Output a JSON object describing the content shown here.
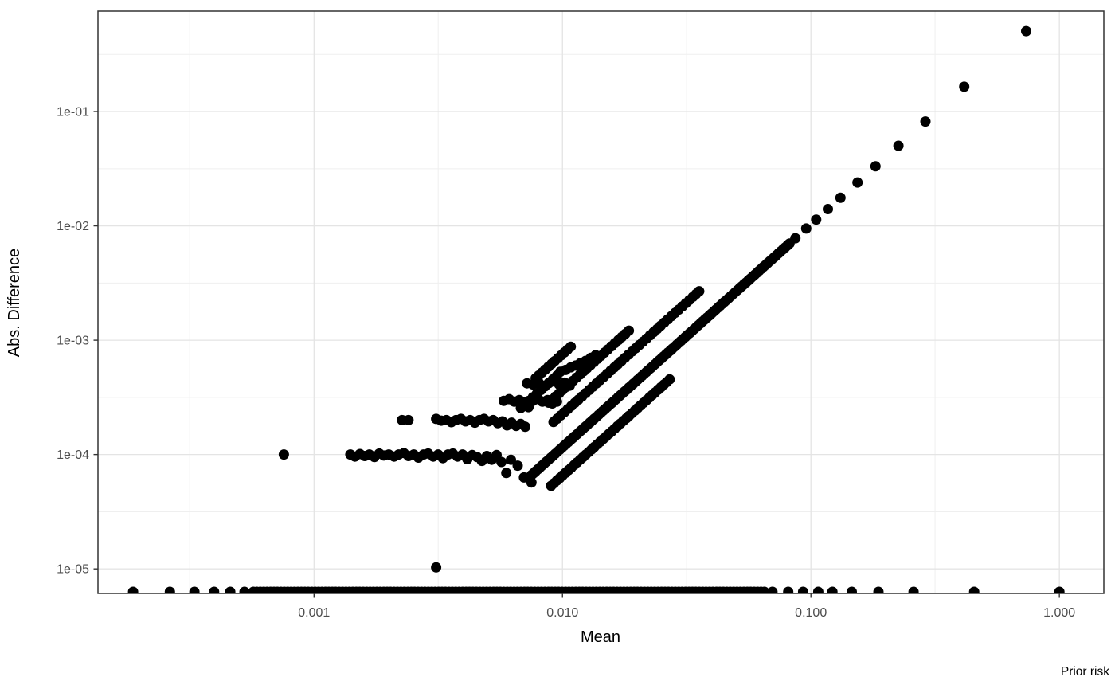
{
  "chart_data": {
    "type": "scatter",
    "title": "",
    "xlabel": "Mean",
    "ylabel": "Abs. Difference",
    "legend_title": "Prior risk",
    "axes": {
      "x": {
        "scale": "log",
        "range": [
          0.000135,
          1.51
        ],
        "ticks": [
          0.001,
          0.01,
          0.1,
          1
        ],
        "tick_labels": [
          "0.001",
          "0.010",
          "0.100",
          "1.000"
        ],
        "minor": [
          0.000316,
          0.00316,
          0.0316,
          0.316
        ]
      },
      "y": {
        "scale": "log",
        "range": [
          6.1e-06,
          0.755
        ],
        "ticks": [
          1e-05,
          0.0001,
          0.001,
          0.01,
          0.1
        ],
        "tick_labels": [
          "1e-05",
          "1e-04",
          "1e-03",
          "1e-02",
          "1e-01"
        ],
        "minor": [
          3.16e-05,
          0.000316,
          0.00316,
          0.0316,
          0.316
        ]
      }
    },
    "style": {
      "point_color": "#000000",
      "point_radius": 6.5,
      "grid_major_color": "#e4e4e4",
      "grid_minor_color": "#efefef",
      "panel_border_color": "#333333",
      "tick_mark_color": "#333333",
      "tick_label_color": "#4d4d4d",
      "grid": true,
      "legend_position": "bottom-right"
    },
    "series": [
      {
        "name": "bottom-row-clipped",
        "segments": [
          {
            "kind": "points",
            "pts": [
              [
                0.000187,
                6.3e-06
              ],
              [
                0.000263,
                6.3e-06
              ],
              [
                0.00033,
                6.3e-06
              ],
              [
                0.000396,
                6.3e-06
              ],
              [
                0.00046,
                6.3e-06
              ],
              [
                0.000525,
                6.3e-06
              ]
            ]
          },
          {
            "kind": "const_y",
            "y": 6.3e-06,
            "from": 0.00057,
            "to": 0.065,
            "n": 150
          },
          {
            "kind": "points",
            "pts": [
              [
                0.07,
                6.3e-06
              ],
              [
                0.081,
                6.3e-06
              ],
              [
                0.093,
                6.3e-06
              ],
              [
                0.107,
                6.3e-06
              ],
              [
                0.122,
                6.3e-06
              ],
              [
                0.146,
                6.3e-06
              ],
              [
                0.187,
                6.3e-06
              ],
              [
                0.259,
                6.3e-06
              ],
              [
                0.454,
                6.3e-06
              ],
              [
                1.0,
                6.3e-06
              ]
            ]
          }
        ]
      },
      {
        "name": "main-curve",
        "segments": [
          {
            "kind": "power",
            "c": 0.92,
            "exp": 1.95,
            "from": 0.0075,
            "to": 0.082,
            "n": 120
          },
          {
            "kind": "power_points",
            "c": 0.92,
            "exp": 1.95,
            "xs": [
              0.0866,
              0.0957,
              0.105,
              0.117,
              0.1315,
              0.154,
              0.182,
              0.225,
              0.289,
              0.414,
              0.735
            ]
          }
        ]
      },
      {
        "name": "lower-parallel-curve",
        "segments": [
          {
            "kind": "power",
            "c": 0.52,
            "exp": 1.95,
            "from": 0.009,
            "to": 0.027,
            "n": 42
          }
        ]
      },
      {
        "name": "upper-branch-1",
        "segments": [
          {
            "kind": "power",
            "c": 1.8,
            "exp": 1.95,
            "from": 0.0092,
            "to": 0.0335,
            "n": 40
          },
          {
            "kind": "power_points",
            "c": 1.8,
            "exp": 1.95,
            "xs": [
              0.0345,
              0.0355
            ]
          }
        ]
      },
      {
        "name": "upper-branch-2",
        "segments": [
          {
            "kind": "power",
            "c": 2.9,
            "exp": 1.95,
            "from": 0.0088,
            "to": 0.0185,
            "n": 24
          }
        ]
      },
      {
        "name": "upper-branch-3",
        "segments": [
          {
            "kind": "power",
            "c": 6.0,
            "exp": 1.95,
            "from": 0.0078,
            "to": 0.0108,
            "n": 12
          }
        ]
      },
      {
        "name": "upper-branch-4",
        "segments": [
          {
            "kind": "power",
            "c": 4.3,
            "exp": 1.95,
            "from": 0.0068,
            "to": 0.0095,
            "n": 10
          }
        ]
      },
      {
        "name": "plateau-1e-4",
        "segments": [
          {
            "kind": "points",
            "pts": [
              [
                0.000756,
                0.0001
              ],
              [
                0.0014,
                0.0001
              ],
              [
                0.00146,
                9.6e-05
              ],
              [
                0.00153,
                0.000101
              ],
              [
                0.0016,
                9.7e-05
              ],
              [
                0.00167,
                0.0001
              ],
              [
                0.00175,
                9.5e-05
              ],
              [
                0.00183,
                0.000102
              ],
              [
                0.00191,
                9.8e-05
              ],
              [
                0.002,
                0.0001
              ],
              [
                0.0021,
                9.6e-05
              ],
              [
                0.00219,
                0.0001
              ],
              [
                0.0023,
                0.000103
              ],
              [
                0.0024,
                9.7e-05
              ],
              [
                0.00252,
                0.0001
              ],
              [
                0.00263,
                9.4e-05
              ],
              [
                0.00276,
                0.0001
              ],
              [
                0.00288,
                0.000102
              ],
              [
                0.00302,
                9.6e-05
              ],
              [
                0.00316,
                0.0001
              ],
              [
                0.0033,
                9.3e-05
              ],
              [
                0.00346,
                0.0001
              ],
              [
                0.00362,
                0.000102
              ],
              [
                0.00378,
                9.6e-05
              ],
              [
                0.00396,
                0.0001
              ],
              [
                0.00414,
                9.1e-05
              ],
              [
                0.00433,
                9.9e-05
              ],
              [
                0.00453,
                9.5e-05
              ],
              [
                0.00474,
                8.8e-05
              ],
              [
                0.00496,
                9.7e-05
              ],
              [
                0.00519,
                9e-05
              ],
              [
                0.00543,
                9.9e-05
              ],
              [
                0.00568,
                8.6e-05
              ],
              [
                0.00594,
                6.9e-05
              ],
              [
                0.0062,
                9e-05
              ],
              [
                0.0066,
                8e-05
              ],
              [
                0.007,
                6.3e-05
              ],
              [
                0.0075,
                5.7e-05
              ]
            ]
          }
        ]
      },
      {
        "name": "plateau-2e-4",
        "segments": [
          {
            "kind": "points",
            "pts": [
              [
                0.00226,
                0.0002
              ],
              [
                0.0024,
                0.0002
              ],
              [
                0.0031,
                0.000205
              ],
              [
                0.00325,
                0.000198
              ],
              [
                0.00341,
                0.0002
              ],
              [
                0.00357,
                0.000192
              ],
              [
                0.00373,
                0.0002
              ],
              [
                0.0039,
                0.000205
              ],
              [
                0.00407,
                0.000195
              ],
              [
                0.00425,
                0.0002
              ],
              [
                0.00444,
                0.00019
              ],
              [
                0.00463,
                0.0002
              ],
              [
                0.00483,
                0.000205
              ],
              [
                0.00504,
                0.000195
              ],
              [
                0.00526,
                0.0002
              ],
              [
                0.00549,
                0.000188
              ],
              [
                0.00573,
                0.000195
              ],
              [
                0.00598,
                0.00018
              ],
              [
                0.00624,
                0.00019
              ],
              [
                0.00651,
                0.000178
              ],
              [
                0.00679,
                0.000185
              ],
              [
                0.00708,
                0.000175
              ]
            ]
          }
        ]
      },
      {
        "name": "plateau-3e-4",
        "segments": [
          {
            "kind": "points",
            "pts": [
              [
                0.0058,
                0.000295
              ],
              [
                0.0061,
                0.000305
              ],
              [
                0.0064,
                0.00029
              ],
              [
                0.0067,
                0.0003
              ],
              [
                0.007,
                0.000285
              ],
              [
                0.0073,
                0.00026
              ],
              [
                0.0076,
                0.000295
              ],
              [
                0.008,
                0.000305
              ],
              [
                0.0083,
                0.00029
              ],
              [
                0.0087,
                0.0003
              ],
              [
                0.0091,
                0.00028
              ],
              [
                0.0095,
                0.00029
              ]
            ]
          }
        ]
      },
      {
        "name": "plateau-4e-4",
        "segments": [
          {
            "kind": "points",
            "pts": [
              [
                0.0072,
                0.00042
              ],
              [
                0.0076,
                0.00041
              ],
              [
                0.008,
                0.00043
              ],
              [
                0.0084,
                0.0004
              ],
              [
                0.0088,
                0.00042
              ],
              [
                0.0093,
                0.000435
              ],
              [
                0.0097,
                0.00041
              ],
              [
                0.0102,
                0.000425
              ],
              [
                0.0107,
                0.0004
              ]
            ]
          }
        ]
      },
      {
        "name": "plateau-rise",
        "segments": [
          {
            "kind": "points",
            "pts": [
              [
                0.0098,
                0.00053
              ],
              [
                0.0103,
                0.00055
              ],
              [
                0.0108,
                0.00058
              ],
              [
                0.0113,
                0.0006
              ],
              [
                0.0118,
                0.00063
              ],
              [
                0.0124,
                0.00066
              ],
              [
                0.013,
                0.0007
              ],
              [
                0.0136,
                0.00074
              ]
            ]
          }
        ]
      },
      {
        "name": "isolated-points",
        "segments": [
          {
            "kind": "points",
            "pts": [
              [
                0.0031,
                1.03e-05
              ]
            ]
          }
        ]
      }
    ]
  }
}
